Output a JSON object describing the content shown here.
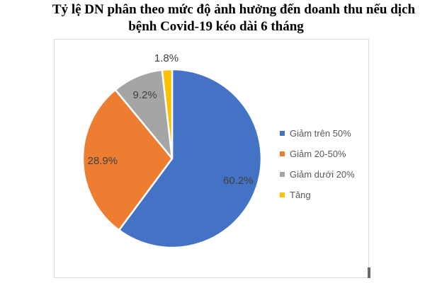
{
  "title": {
    "line1": "Tỷ lệ DN phân theo mức độ ảnh hưởng đến doanh thu nếu dịch",
    "line2": "bệnh Covid-19 kéo dài 6 tháng"
  },
  "chart_data": {
    "type": "pie",
    "title": "Tỷ lệ DN phân theo mức độ ảnh hưởng đến doanh thu nếu dịch bệnh Covid-19 kéo dài 6 tháng",
    "start_angle_deg": 0,
    "direction": "clockwise",
    "legend_position": "right",
    "data_label_color": "#404040",
    "legend_text_color": "#595959",
    "chart_border_color": "#d9d9d9",
    "slices": [
      {
        "label": "Giảm trên 50%",
        "value": 60.2,
        "display": "60.2%",
        "color": "#4472C4"
      },
      {
        "label": "Giảm 20-50%",
        "value": 28.9,
        "display": "28.9%",
        "color": "#ED7D31"
      },
      {
        "label": "Giảm dưới 20%",
        "value": 9.2,
        "display": "9.2%",
        "color": "#A5A5A5"
      },
      {
        "label": "Tăng",
        "value": 1.8,
        "display": "1.8%",
        "color": "#FFC000"
      }
    ]
  }
}
